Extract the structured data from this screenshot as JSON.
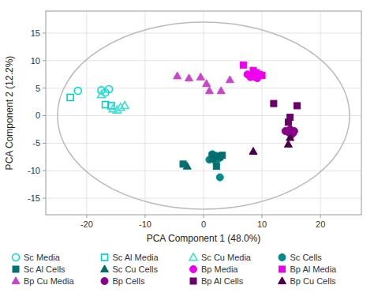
{
  "chart_data": {
    "type": "scatter",
    "x_label": "PCA Component 1 (48.0%)",
    "y_label": "PCA Component 2 (12.2%)",
    "xlim": [
      -27,
      27
    ],
    "ylim": [
      -18,
      19
    ],
    "xticks": [
      -20,
      -10,
      0,
      10,
      20
    ],
    "yticks": [
      -15,
      -10,
      -5,
      0,
      5,
      10,
      15
    ],
    "grid": true,
    "legend": "bottom",
    "ellipse": {
      "cx": 0,
      "cy": 0,
      "rx": 25,
      "ry": 17
    },
    "series": [
      {
        "name": "Sc Media",
        "color": "#00DEDE",
        "marker": "open-circle",
        "x": [
          -21.5,
          -17.5,
          -16.8,
          -16.2
        ],
        "values": [
          4.5,
          4.6,
          4.2,
          4.8
        ]
      },
      {
        "name": "Sc Al Media",
        "color": "#00CED1",
        "marker": "open-square",
        "x": [
          -22.8,
          -16.8,
          -15.8
        ],
        "values": [
          3.3,
          2.0,
          1.8
        ]
      },
      {
        "name": "Sc Cu Media",
        "color": "#40E0D0",
        "marker": "open-triangle",
        "x": [
          -17.5,
          -15.5,
          -14.8,
          -14.2,
          -13.5
        ],
        "values": [
          3.8,
          1.2,
          1.0,
          1.5,
          1.8
        ]
      },
      {
        "name": "Sc Cells",
        "color": "#008B8B",
        "marker": "circle",
        "x": [
          1.5,
          1.8,
          2.2,
          2.6,
          2.0,
          1.0,
          2.8
        ],
        "values": [
          -7.0,
          -7.5,
          -7.3,
          -7.8,
          -8.2,
          -8.0,
          -11.2
        ]
      },
      {
        "name": "Sc Al Cells",
        "color": "#007070",
        "marker": "square",
        "x": [
          -3.5,
          1.5,
          2.2,
          2.8,
          3.2
        ],
        "values": [
          -8.8,
          -7.2,
          -9.2,
          -7.5,
          -7.2
        ]
      },
      {
        "name": "Sc Cu Cells",
        "color": "#006B6B",
        "marker": "triangle",
        "x": [
          -2.8,
          1.5,
          2.5
        ],
        "values": [
          -9.2,
          -7.8,
          -7.5
        ]
      },
      {
        "name": "Bp Media",
        "color": "#EE00EE",
        "marker": "circle",
        "x": [
          7.5,
          8.0,
          8.3,
          8.8,
          9.2
        ],
        "values": [
          7.5,
          7.0,
          7.3,
          7.0,
          6.8
        ]
      },
      {
        "name": "Bp Al Media",
        "color": "#EE00EE",
        "marker": "square",
        "x": [
          6.8,
          8.5,
          9.0,
          9.5,
          10.0
        ],
        "values": [
          9.2,
          8.2,
          7.8,
          7.5,
          7.3
        ]
      },
      {
        "name": "Bp Cu Media",
        "color": "#CC44CC",
        "marker": "triangle",
        "x": [
          -4.5,
          -2.5,
          -0.5,
          0.5,
          1.0,
          3.0,
          4.5
        ],
        "values": [
          7.2,
          6.8,
          7.0,
          5.8,
          4.5,
          4.5,
          6.5
        ]
      },
      {
        "name": "Bp Cells",
        "color": "#8B008B",
        "marker": "circle",
        "x": [
          14.0,
          14.5,
          14.8,
          15.0,
          15.3,
          15.5
        ],
        "values": [
          -2.8,
          -3.0,
          -2.5,
          -3.5,
          -3.2,
          -2.8
        ]
      },
      {
        "name": "Bp Al Cells",
        "color": "#6B006B",
        "marker": "square",
        "x": [
          12.0,
          14.8,
          16.0,
          14.5
        ],
        "values": [
          2.2,
          -0.3,
          1.8,
          -1.2
        ]
      },
      {
        "name": "Bp Cu Cells",
        "color": "#4B004B",
        "marker": "triangle",
        "x": [
          8.5,
          14.5,
          14.8
        ],
        "values": [
          -6.5,
          -5.2,
          -4.0
        ]
      }
    ]
  }
}
